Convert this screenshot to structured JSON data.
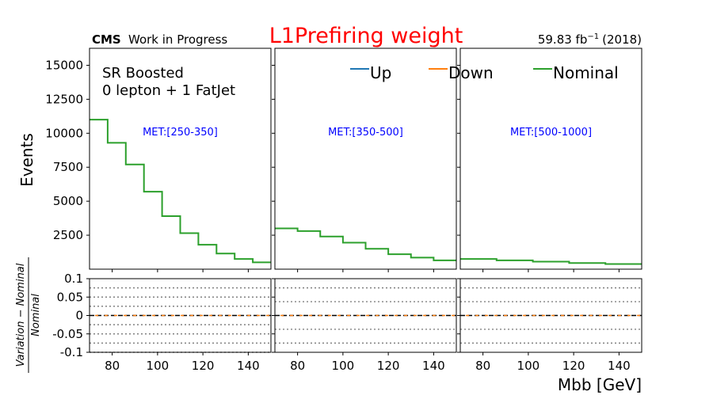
{
  "chart_data": {
    "type": "line",
    "title": "L1Prefiring weight",
    "experiment": "CMS",
    "status_label": "Work in Progress",
    "lumi_value": "59.83 fb",
    "lumi_exp": "−1",
    "lumi_year": "(2018)",
    "region_line1": "SR Boosted",
    "region_line2": "0 lepton + 1 FatJet",
    "xlabel": "Mbb [GeV]",
    "ylabel": "Events",
    "ratio_ylabel_num": "Variation − Nominal",
    "ratio_ylabel_den": "Nominal",
    "legend": [
      "Up",
      "Down",
      "Nominal"
    ],
    "colors": {
      "Up": "#1f77b4",
      "Down": "#ff7f0e",
      "Nominal": "#2ca02c",
      "title": "#ff0000",
      "met": "#0000ff"
    },
    "main_ylim": [
      0,
      16250
    ],
    "main_yticks": [
      "2500",
      "5000",
      "7500",
      "10000",
      "12500",
      "15000"
    ],
    "ratio_ylim": [
      -0.1,
      0.1
    ],
    "ratio_yticks": [
      "0.1",
      "0.05",
      "0",
      "-0.05",
      "-0.1"
    ],
    "panels": [
      {
        "met_label": "MET:[250-350]",
        "xlim": [
          70,
          150
        ],
        "xticks": [
          "80",
          "100",
          "120",
          "140"
        ],
        "edges": [
          70,
          78,
          86,
          94,
          102,
          110,
          118,
          126,
          134,
          142,
          150
        ],
        "nominal": [
          11000,
          9300,
          7700,
          5700,
          3900,
          2650,
          1800,
          1150,
          750,
          500
        ],
        "ratio_gridlines": [
          0.075,
          0.05,
          0.025,
          -0.025,
          -0.05,
          -0.075,
          -0.1
        ]
      },
      {
        "met_label": "MET:[350-500]",
        "xlim": [
          70,
          150
        ],
        "xticks": [
          "80",
          "100",
          "120",
          "140"
        ],
        "edges": [
          70,
          80,
          90,
          100,
          110,
          120,
          130,
          140,
          150
        ],
        "nominal": [
          3000,
          2800,
          2400,
          1950,
          1500,
          1100,
          850,
          650
        ],
        "ratio_gridlines": [
          0.075,
          0.0375,
          -0.0375,
          -0.075
        ]
      },
      {
        "met_label": "MET:[500-1000]",
        "xlim": [
          70,
          150
        ],
        "xticks": [
          "80",
          "100",
          "120",
          "140"
        ],
        "edges": [
          70,
          86,
          102,
          118,
          134,
          150
        ],
        "nominal": [
          750,
          650,
          550,
          450,
          380
        ],
        "ratio_gridlines": [
          0.075,
          0.0375,
          -0.0375,
          -0.075
        ]
      }
    ]
  }
}
